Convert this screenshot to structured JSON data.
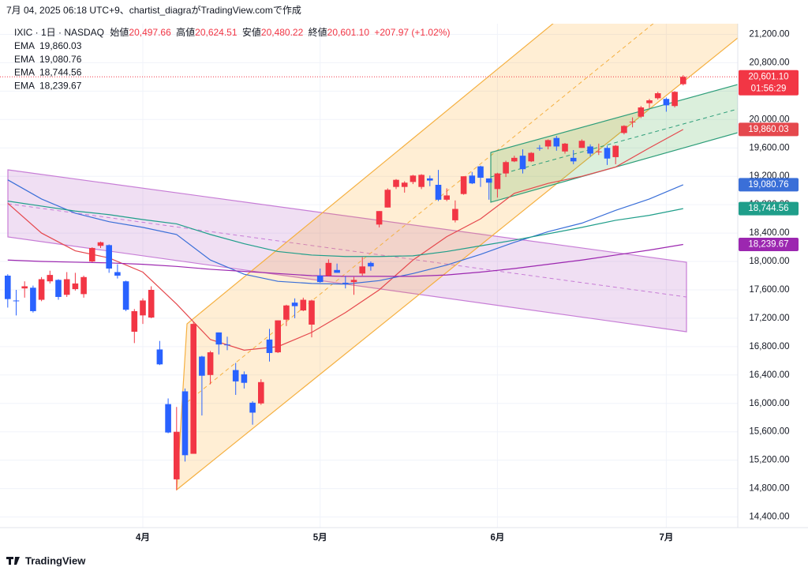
{
  "header": {
    "title": "7月 04, 2025 06:18 UTC+9、chartist_diagraがTradingView.comで作成"
  },
  "chart_data": {
    "type": "candlestick",
    "symbol": "IXIC · 1日 · NASDAQ",
    "ohlc_names": {
      "open": "始値",
      "high": "高値",
      "low": "安値",
      "close": "終値"
    },
    "last_labels": {
      "open": "20,497.66",
      "high": "20,624.51",
      "low": "20,480.22",
      "close": "20,601.10"
    },
    "change_label": "+207.97 (+1.02%)",
    "countdown": "01:56:29",
    "categories": [
      null,
      null,
      null,
      null,
      null,
      null,
      null,
      null,
      null,
      null,
      null,
      null,
      null,
      null,
      null,
      null,
      "4月",
      null,
      null,
      null,
      null,
      null,
      null,
      null,
      null,
      null,
      null,
      null,
      null,
      null,
      null,
      null,
      null,
      null,
      null,
      null,
      null,
      "5月",
      null,
      null,
      null,
      null,
      null,
      null,
      null,
      null,
      null,
      null,
      null,
      null,
      null,
      null,
      null,
      null,
      null,
      null,
      null,
      null,
      "6月",
      null,
      null,
      null,
      null,
      null,
      null,
      null,
      null,
      null,
      null,
      null,
      null,
      null,
      null,
      null,
      null,
      null,
      null,
      null,
      "7月",
      null,
      null
    ],
    "open": [
      17800,
      17450,
      17620,
      17630,
      17460,
      17720,
      17740,
      17530,
      17610,
      17540,
      18000,
      18220,
      18230,
      17850,
      17720,
      17010,
      17240,
      17210,
      16760,
      15990,
      14930,
      16170,
      15290,
      16660,
      16400,
      17000,
      16830,
      16470,
      16410,
      16010,
      16000,
      16900,
      16720,
      17180,
      17420,
      17310,
      17110,
      17800,
      17800,
      17880,
      17700,
      17710,
      17830,
      17980,
      18520,
      18760,
      19050,
      19050,
      19120,
      19050,
      19170,
      19080,
      18870,
      18580,
      18950,
      19210,
      19340,
      19170,
      19020,
      19240,
      19410,
      19490,
      19410,
      19600,
      19620,
      19740,
      19550,
      19460,
      19600,
      19620,
      19540,
      19600,
      19470,
      19810,
      19970,
      20040,
      20230,
      20300,
      20290,
      20190,
      20497.66
    ],
    "high": [
      17820,
      17600,
      17720,
      17660,
      17780,
      17870,
      17750,
      17850,
      17840,
      17800,
      18200,
      18280,
      18240,
      17960,
      17730,
      17330,
      17480,
      17650,
      16880,
      16070,
      15950,
      16210,
      17140,
      16670,
      16740,
      17000,
      16940,
      16570,
      16450,
      16030,
      16340,
      17050,
      17170,
      17390,
      17480,
      17490,
      17460,
      17900,
      18030,
      17970,
      17790,
      17780,
      18060,
      18000,
      18710,
      19030,
      19160,
      19130,
      19220,
      19230,
      19210,
      19290,
      19030,
      18860,
      19200,
      19260,
      19350,
      19170,
      19250,
      19420,
      19490,
      19580,
      19540,
      19640,
      19720,
      19770,
      19670,
      19570,
      19720,
      19650,
      19660,
      19630,
      19640,
      19920,
      20030,
      20190,
      20290,
      20390,
      20310,
      20400,
      20624.51
    ],
    "low": [
      17350,
      17240,
      17490,
      17280,
      17440,
      17690,
      17460,
      17500,
      17590,
      17490,
      17990,
      18190,
      17840,
      17760,
      17300,
      16850,
      17120,
      17200,
      16540,
      15580,
      14780,
      15180,
      15290,
      15830,
      16270,
      16690,
      16750,
      16120,
      16210,
      15700,
      15980,
      16590,
      16710,
      17090,
      17200,
      17300,
      16930,
      17700,
      17790,
      17840,
      17620,
      17530,
      17800,
      17870,
      18480,
      18760,
      19020,
      18970,
      19090,
      19020,
      19060,
      18850,
      18850,
      18550,
      18940,
      19090,
      19050,
      18870,
      18900,
      19190,
      19400,
      19240,
      19400,
      19560,
      19580,
      19560,
      19520,
      19370,
      19600,
      19480,
      19500,
      19360,
      19370,
      19790,
      19890,
      20020,
      20160,
      20280,
      20110,
      20170,
      20480.22
    ],
    "close": [
      17470,
      17440,
      17650,
      17300,
      17750,
      17810,
      17500,
      17750,
      17690,
      17780,
      18190,
      18270,
      17900,
      17800,
      17320,
      17300,
      17450,
      17600,
      16550,
      15590,
      15600,
      15270,
      17120,
      16390,
      16720,
      16830,
      16820,
      16310,
      16290,
      15870,
      16300,
      16710,
      17170,
      17380,
      17370,
      17460,
      17450,
      17710,
      17980,
      17840,
      17690,
      17740,
      17930,
      17930,
      18710,
      19010,
      19150,
      19110,
      19210,
      19220,
      19140,
      18870,
      18930,
      18740,
      19200,
      19100,
      19180,
      19110,
      19240,
      19400,
      19460,
      19300,
      19530,
      19590,
      19710,
      19620,
      19660,
      19410,
      19700,
      19520,
      19550,
      19450,
      19630,
      19910,
      19970,
      20170,
      20270,
      20370,
      20200,
      20390,
      20601.1
    ],
    "up_color": "#f23645",
    "down_color": "#2962ff",
    "ylim": [
      14250,
      21350
    ],
    "yticks": [
      {
        "value": 14400,
        "label": "14,400.00"
      },
      {
        "value": 14800,
        "label": "14,800.00"
      },
      {
        "value": 15200,
        "label": "15,200.00"
      },
      {
        "value": 15600,
        "label": "15,600.00"
      },
      {
        "value": 16000,
        "label": "16,000.00"
      },
      {
        "value": 16400,
        "label": "16,400.00"
      },
      {
        "value": 16800,
        "label": "16,800.00"
      },
      {
        "value": 17200,
        "label": "17,200.00"
      },
      {
        "value": 17600,
        "label": "17,600.00"
      },
      {
        "value": 18000,
        "label": "18,000.00"
      },
      {
        "value": 18400,
        "label": "18,400.00"
      },
      {
        "value": 18800,
        "label": "18,800.00"
      },
      {
        "value": 19200,
        "label": "19,200.00"
      },
      {
        "value": 19600,
        "label": "19,600.00"
      },
      {
        "value": 20000,
        "label": "20,000.00"
      },
      {
        "value": 20400,
        "label": "20,400.00"
      },
      {
        "value": 20800,
        "label": "20,800.00"
      },
      {
        "value": 21200,
        "label": "21,200.00"
      }
    ],
    "grid": true,
    "overlays": [
      {
        "name": "EMA",
        "type": "line",
        "color": "#e5484d",
        "last_label": "19,860.03",
        "x": [
          0,
          4,
          8,
          12,
          16,
          20,
          24,
          28,
          32,
          36,
          40,
          44,
          48,
          52,
          56,
          60,
          64,
          68,
          72,
          76,
          80
        ],
        "values": [
          18820,
          18400,
          18150,
          18050,
          17850,
          17400,
          16900,
          16750,
          16800,
          17000,
          17280,
          17600,
          18020,
          18350,
          18600,
          18960,
          19100,
          19200,
          19330,
          19600,
          19860.03
        ]
      },
      {
        "name": "EMA",
        "type": "line",
        "color": "#3a6fd8",
        "last_label": "19,080.76",
        "x": [
          0,
          4,
          8,
          12,
          16,
          20,
          24,
          28,
          32,
          36,
          40,
          44,
          48,
          52,
          56,
          60,
          64,
          68,
          72,
          76,
          80
        ],
        "values": [
          19150,
          18880,
          18680,
          18560,
          18480,
          18380,
          18020,
          17820,
          17720,
          17690,
          17680,
          17730,
          17830,
          17950,
          18100,
          18270,
          18420,
          18540,
          18720,
          18880,
          19080.76
        ]
      },
      {
        "name": "EMA",
        "type": "line",
        "color": "#1f9e8a",
        "last_label": "18,744.56",
        "x": [
          0,
          4,
          8,
          12,
          16,
          20,
          24,
          28,
          32,
          36,
          40,
          44,
          48,
          52,
          56,
          60,
          64,
          68,
          72,
          76,
          80
        ],
        "values": [
          18850,
          18780,
          18710,
          18660,
          18590,
          18530,
          18380,
          18250,
          18140,
          18090,
          18070,
          18070,
          18080,
          18140,
          18220,
          18300,
          18390,
          18480,
          18580,
          18650,
          18744.56
        ]
      },
      {
        "name": "EMA",
        "type": "line",
        "color": "#9c27b0",
        "last_label": "18,239.67",
        "x": [
          0,
          4,
          8,
          12,
          16,
          20,
          24,
          28,
          32,
          36,
          40,
          44,
          48,
          52,
          56,
          60,
          64,
          68,
          72,
          76,
          80
        ],
        "values": [
          18020,
          18000,
          17990,
          17980,
          17960,
          17930,
          17890,
          17860,
          17830,
          17800,
          17790,
          17790,
          17790,
          17810,
          17850,
          17900,
          17960,
          18020,
          18090,
          18160,
          18239.67
        ]
      }
    ]
  },
  "footer": {
    "brand": "TradingView"
  }
}
